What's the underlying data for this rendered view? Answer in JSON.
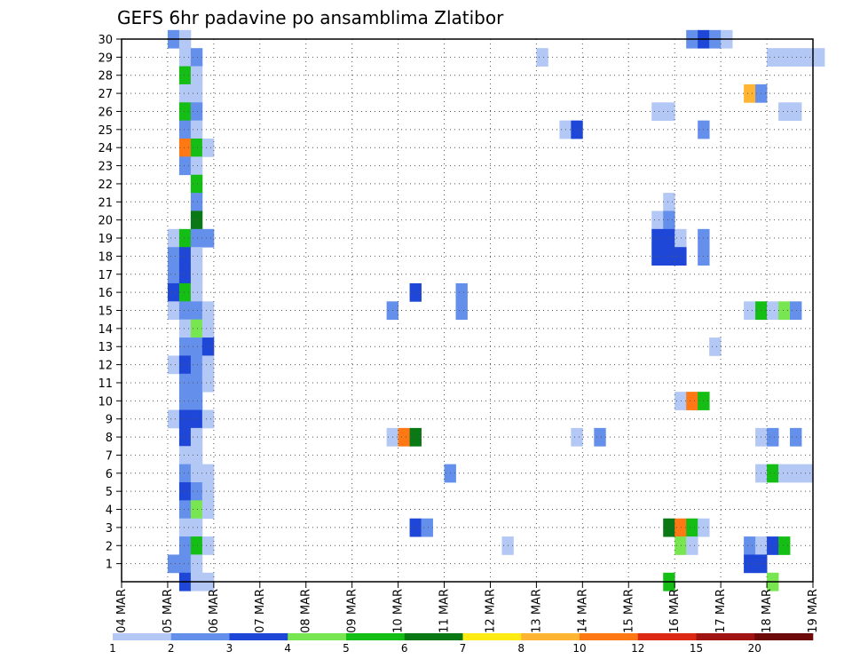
{
  "chart_data": {
    "type": "heatmap",
    "title": "GEFS 6hr padavine po ansamblima Zlatibor",
    "xlabel": "",
    "ylabel": "",
    "x_tick_labels": [
      "04 MAR",
      "05 MAR",
      "06 MAR",
      "07 MAR",
      "08 MAR",
      "09 MAR",
      "10 MAR",
      "11 MAR",
      "12 MAR",
      "13 MAR",
      "14 MAR",
      "15 MAR",
      "16 MAR",
      "17 MAR",
      "18 MAR",
      "19 MAR"
    ],
    "x_range_days": [
      0,
      15
    ],
    "y_tick_labels": [
      "1",
      "2",
      "3",
      "4",
      "5",
      "6",
      "7",
      "8",
      "9",
      "10",
      "11",
      "12",
      "13",
      "14",
      "15",
      "16",
      "17",
      "18",
      "19",
      "20",
      "21",
      "22",
      "23",
      "24",
      "25",
      "26",
      "27",
      "28",
      "29",
      "30"
    ],
    "y_range": [
      0,
      30
    ],
    "grid": true,
    "colorbar": {
      "labels": [
        "1",
        "2",
        "3",
        "4",
        "5",
        "6",
        "7",
        "8",
        "10",
        "12",
        "15",
        "20"
      ],
      "colors": [
        "#b4c8f5",
        "#6490eb",
        "#1e46d7",
        "#78e650",
        "#14be14",
        "#0a7814",
        "#ffeb14",
        "#ffb432",
        "#ff7814",
        "#dc2814",
        "#a01414",
        "#6e0a0a"
      ]
    },
    "cell_width_days": 0.25,
    "cells": [
      [
        1.0,
        30,
        1
      ],
      [
        1.25,
        30,
        0
      ],
      [
        12.25,
        30,
        1
      ],
      [
        12.5,
        30,
        2
      ],
      [
        12.75,
        30,
        1
      ],
      [
        13.0,
        30,
        0
      ],
      [
        1.25,
        29,
        0
      ],
      [
        1.5,
        29,
        1
      ],
      [
        9.0,
        29,
        0
      ],
      [
        14.0,
        29,
        0
      ],
      [
        14.25,
        29,
        0
      ],
      [
        14.5,
        29,
        0
      ],
      [
        14.75,
        29,
        0
      ],
      [
        15.0,
        29,
        0
      ],
      [
        1.25,
        28,
        4
      ],
      [
        1.5,
        28,
        0
      ],
      [
        1.25,
        27,
        0
      ],
      [
        1.5,
        27,
        0
      ],
      [
        13.5,
        27,
        7
      ],
      [
        13.75,
        27,
        1
      ],
      [
        1.25,
        26,
        4
      ],
      [
        1.5,
        26,
        1
      ],
      [
        14.25,
        26,
        0
      ],
      [
        14.5,
        26,
        0
      ],
      [
        11.5,
        26,
        0
      ],
      [
        11.75,
        26,
        0
      ],
      [
        1.25,
        25,
        1
      ],
      [
        1.5,
        25,
        0
      ],
      [
        9.5,
        25,
        0
      ],
      [
        9.75,
        25,
        2
      ],
      [
        12.5,
        25,
        1
      ],
      [
        1.25,
        24,
        8
      ],
      [
        1.5,
        24,
        4
      ],
      [
        1.75,
        24,
        0
      ],
      [
        1.25,
        23,
        1
      ],
      [
        1.5,
        23,
        0
      ],
      [
        1.5,
        22,
        4
      ],
      [
        1.5,
        21,
        1
      ],
      [
        11.75,
        21,
        0
      ],
      [
        1.5,
        20,
        5
      ],
      [
        11.5,
        20,
        0
      ],
      [
        11.75,
        20,
        1
      ],
      [
        1.0,
        19,
        0
      ],
      [
        1.25,
        19,
        4
      ],
      [
        1.5,
        19,
        1
      ],
      [
        1.75,
        19,
        1
      ],
      [
        11.5,
        19,
        2
      ],
      [
        11.75,
        19,
        2
      ],
      [
        12.0,
        19,
        0
      ],
      [
        12.5,
        19,
        1
      ],
      [
        1.0,
        18,
        1
      ],
      [
        1.25,
        18,
        2
      ],
      [
        1.5,
        18,
        0
      ],
      [
        11.5,
        18,
        2
      ],
      [
        11.75,
        18,
        2
      ],
      [
        12.0,
        18,
        2
      ],
      [
        12.5,
        18,
        1
      ],
      [
        1.0,
        17,
        1
      ],
      [
        1.25,
        17,
        2
      ],
      [
        1.5,
        17,
        0
      ],
      [
        1.0,
        16,
        2
      ],
      [
        1.25,
        16,
        4
      ],
      [
        1.5,
        16,
        0
      ],
      [
        6.25,
        16,
        2
      ],
      [
        7.25,
        16,
        1
      ],
      [
        1.0,
        15,
        0
      ],
      [
        1.25,
        15,
        1
      ],
      [
        1.5,
        15,
        1
      ],
      [
        1.75,
        15,
        0
      ],
      [
        5.75,
        15,
        1
      ],
      [
        7.25,
        15,
        1
      ],
      [
        13.5,
        15,
        0
      ],
      [
        13.75,
        15,
        4
      ],
      [
        14.0,
        15,
        0
      ],
      [
        14.25,
        15,
        3
      ],
      [
        14.5,
        15,
        1
      ],
      [
        1.25,
        14,
        0
      ],
      [
        1.5,
        14,
        3
      ],
      [
        1.75,
        14,
        0
      ],
      [
        1.25,
        13,
        1
      ],
      [
        1.5,
        13,
        1
      ],
      [
        1.75,
        13,
        2
      ],
      [
        12.75,
        13,
        0
      ],
      [
        1.0,
        12,
        0
      ],
      [
        1.25,
        12,
        2
      ],
      [
        1.5,
        12,
        1
      ],
      [
        1.75,
        12,
        0
      ],
      [
        1.25,
        11,
        1
      ],
      [
        1.5,
        11,
        1
      ],
      [
        1.75,
        11,
        0
      ],
      [
        1.25,
        10,
        1
      ],
      [
        1.5,
        10,
        1
      ],
      [
        12.0,
        10,
        0
      ],
      [
        12.25,
        10,
        8
      ],
      [
        12.5,
        10,
        4
      ],
      [
        1.0,
        9,
        0
      ],
      [
        1.25,
        9,
        2
      ],
      [
        1.5,
        9,
        2
      ],
      [
        1.75,
        9,
        0
      ],
      [
        1.25,
        8,
        2
      ],
      [
        1.5,
        8,
        0
      ],
      [
        5.75,
        8,
        0
      ],
      [
        6.0,
        8,
        8
      ],
      [
        6.25,
        8,
        5
      ],
      [
        9.75,
        8,
        0
      ],
      [
        10.25,
        8,
        1
      ],
      [
        13.75,
        8,
        0
      ],
      [
        14.0,
        8,
        1
      ],
      [
        14.5,
        8,
        1
      ],
      [
        1.25,
        7,
        0
      ],
      [
        1.5,
        7,
        0
      ],
      [
        1.25,
        6,
        1
      ],
      [
        1.5,
        6,
        0
      ],
      [
        1.75,
        6,
        0
      ],
      [
        7.0,
        6,
        1
      ],
      [
        13.75,
        6,
        0
      ],
      [
        14.0,
        6,
        4
      ],
      [
        14.25,
        6,
        0
      ],
      [
        14.5,
        6,
        0
      ],
      [
        14.75,
        6,
        0
      ],
      [
        1.25,
        5,
        2
      ],
      [
        1.5,
        5,
        1
      ],
      [
        1.75,
        5,
        0
      ],
      [
        1.25,
        4,
        1
      ],
      [
        1.5,
        4,
        3
      ],
      [
        1.75,
        4,
        0
      ],
      [
        1.25,
        3,
        0
      ],
      [
        1.5,
        3,
        0
      ],
      [
        6.25,
        3,
        2
      ],
      [
        6.5,
        3,
        1
      ],
      [
        11.75,
        3,
        5
      ],
      [
        12.0,
        3,
        8
      ],
      [
        12.25,
        3,
        4
      ],
      [
        12.5,
        3,
        0
      ],
      [
        1.25,
        2,
        1
      ],
      [
        1.5,
        2,
        4
      ],
      [
        1.75,
        2,
        0
      ],
      [
        8.25,
        2,
        0
      ],
      [
        12.0,
        2,
        3
      ],
      [
        12.25,
        2,
        0
      ],
      [
        13.5,
        2,
        1
      ],
      [
        13.75,
        2,
        0
      ],
      [
        14.0,
        2,
        2
      ],
      [
        14.25,
        2,
        4
      ],
      [
        1.0,
        1,
        1
      ],
      [
        1.25,
        1,
        1
      ],
      [
        1.5,
        1,
        0
      ],
      [
        13.5,
        1,
        2
      ],
      [
        13.75,
        1,
        2
      ],
      [
        1.25,
        0,
        2
      ],
      [
        1.5,
        0,
        0
      ],
      [
        1.75,
        0,
        0
      ],
      [
        11.75,
        0,
        4
      ],
      [
        14.0,
        0,
        3
      ]
    ]
  }
}
